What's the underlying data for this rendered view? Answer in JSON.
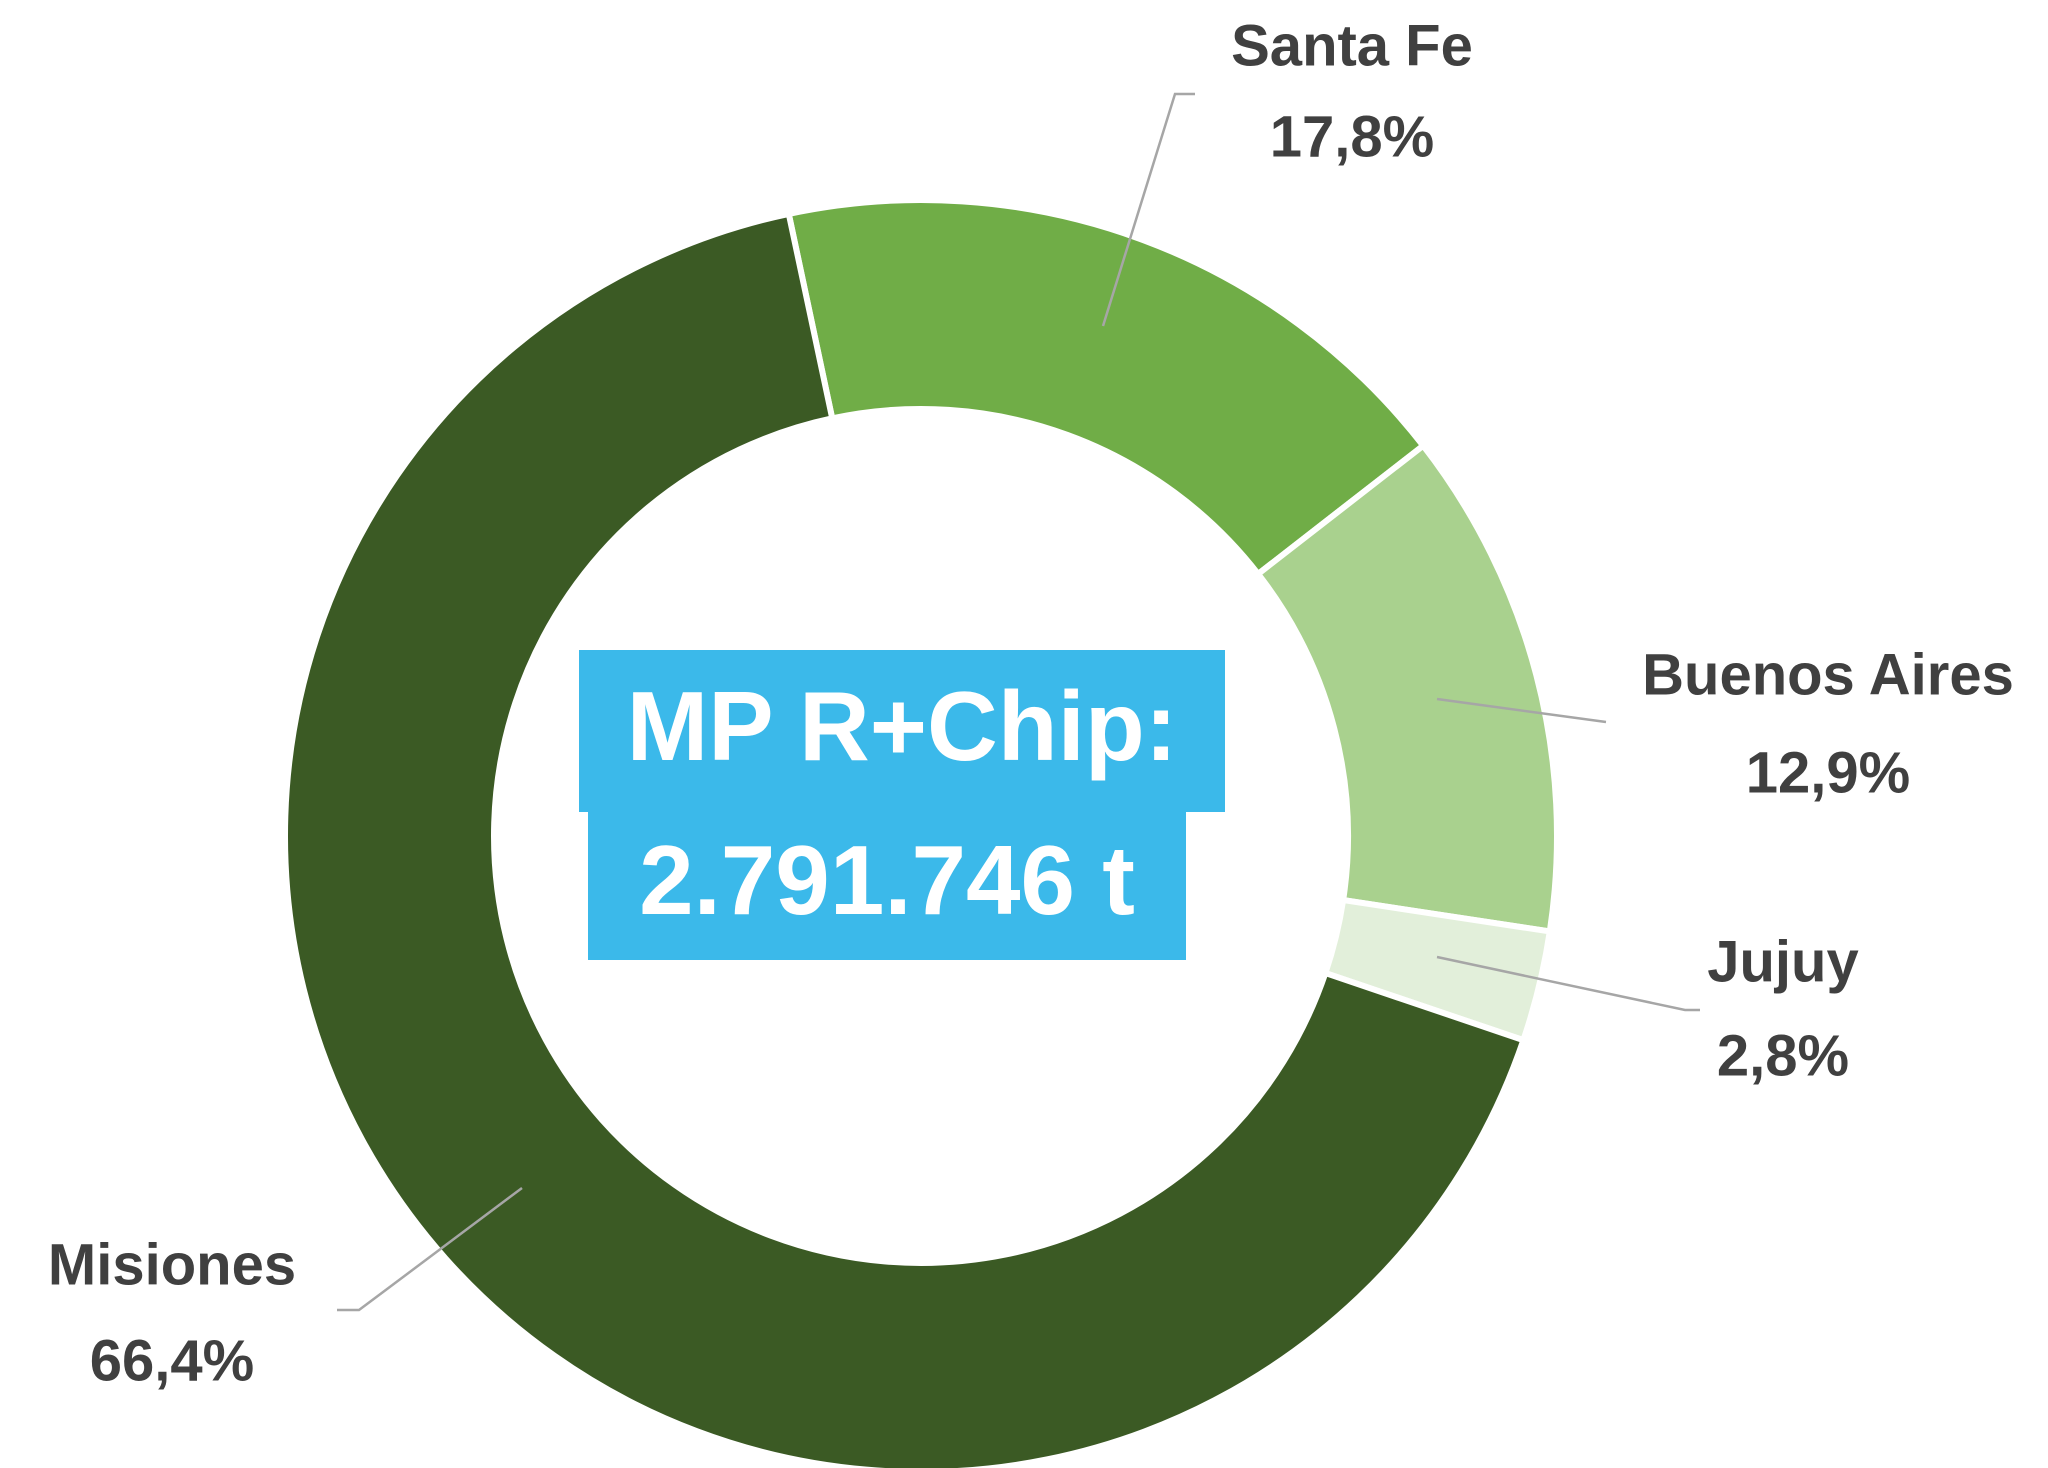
{
  "chart_data": {
    "type": "donut",
    "categories": [
      "Santa Fe",
      "Buenos Aires",
      "Jujuy",
      "Misiones"
    ],
    "values": [
      17.8,
      12.9,
      2.8,
      66.4
    ],
    "value_labels": [
      "17,8%",
      "12,9%",
      "2,8%",
      "66,4%"
    ],
    "colors": [
      "#70ad47",
      "#a9d18e",
      "#e2efda",
      "#3b5a24"
    ],
    "annotations": [
      "MP R+Chip:",
      "2.791.746 t"
    ]
  }
}
